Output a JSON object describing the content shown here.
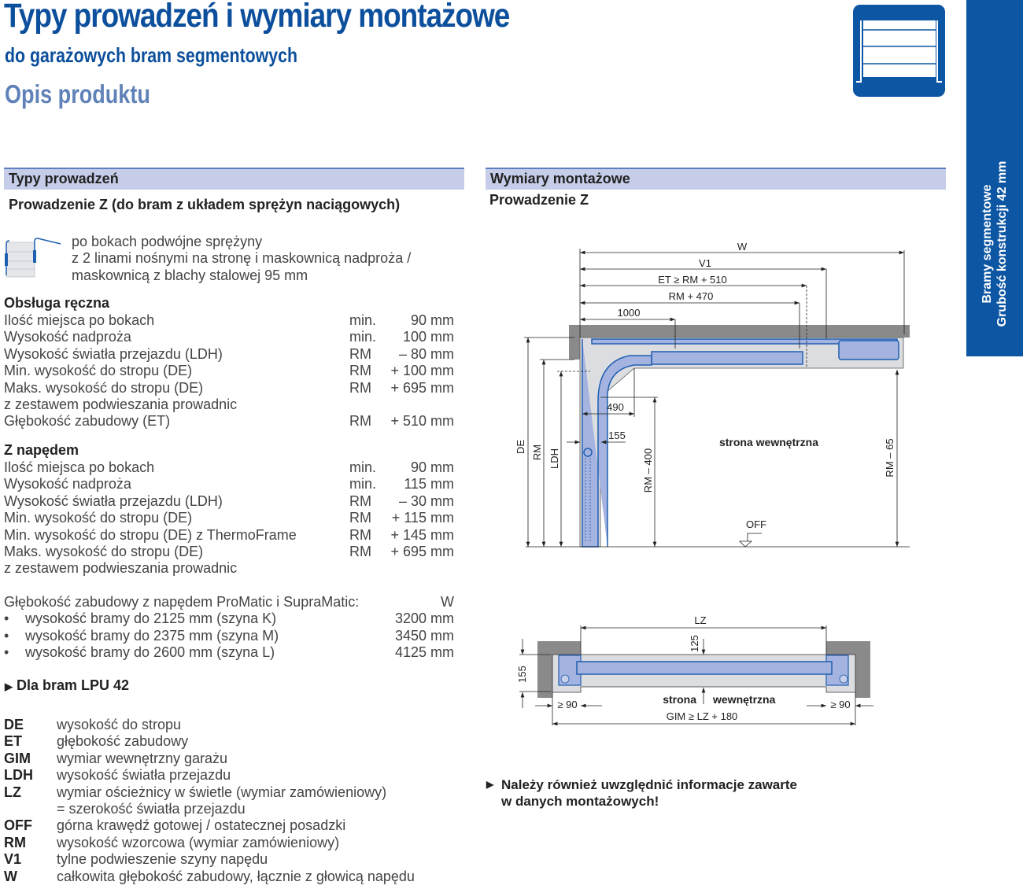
{
  "header": {
    "title": "Typy prowadzeń i wymiary montażowe",
    "subtitle": "do garażowych bram segmentowych",
    "section": "Opis produktu"
  },
  "side_tab": {
    "line1": "Bramy segmentowe",
    "line2": "Grubość konstrukcji 42 mm"
  },
  "colors": {
    "brand_blue": "#0c56a3",
    "section_bg": "#c6cde9",
    "diagram_blue": "#a4b3e0"
  },
  "left": {
    "section_title": "Typy prowadzeń",
    "guide_title": "Prowadzenie Z (do bram z układem sprężyn naciągowych)",
    "guide_desc": [
      "po bokach podwójne sprężyny",
      "z 2 linami nośnymi na stronę i maskownicą nadproża /",
      "maskownicą z blachy stalowej 95 mm"
    ],
    "manual": {
      "title": "Obsługa ręczna",
      "rows": [
        {
          "label": "Ilość miejsca po bokach",
          "ref": "min.",
          "value": "90 mm"
        },
        {
          "label": "Wysokość nadproża",
          "ref": "min.",
          "value": "100 mm"
        },
        {
          "label": "Wysokość światła przejazdu  (LDH)",
          "ref": "RM",
          "value": "– 80 mm"
        },
        {
          "label": "Min. wysokość do stropu (DE)",
          "ref": "RM",
          "value": "+ 100 mm"
        },
        {
          "label": "Maks. wysokość do stropu (DE)",
          "ref": "RM",
          "value": "+ 695 mm"
        },
        {
          "label": "z zestawem podwieszania prowadnic",
          "ref": "",
          "value": ""
        },
        {
          "label": "Głębokość zabudowy (ET)",
          "ref": "RM",
          "value": "+ 510 mm"
        }
      ]
    },
    "drive": {
      "title": "Z napędem",
      "rows": [
        {
          "label": "Ilość miejsca po bokach",
          "ref": "min.",
          "value": "90 mm"
        },
        {
          "label": "Wysokość nadproża",
          "ref": "min.",
          "value": "115 mm"
        },
        {
          "label": "Wysokość światła przejazdu  (LDH)",
          "ref": "RM",
          "value": "– 30 mm"
        },
        {
          "label": "Min. wysokość do stropu (DE)",
          "ref": "RM",
          "value": "+ 115 mm"
        },
        {
          "label": "Min. wysokość do stropu (DE) z ThermoFrame",
          "ref": "RM",
          "value": "+ 145 mm"
        },
        {
          "label": "Maks. wysokość do stropu (DE)",
          "ref": "RM",
          "value": "+ 695 mm"
        },
        {
          "label": "z zestawem podwieszania prowadnic",
          "ref": "",
          "value": ""
        }
      ]
    },
    "depth": {
      "label": "Głębokość zabudowy z napędem ProMatic i SupraMatic:",
      "unit": "W",
      "bullet": "•",
      "items": [
        {
          "label": "wysokość bramy do 2125 mm (szyna K)",
          "value": "3200 mm"
        },
        {
          "label": "wysokość bramy do 2375 mm (szyna M)",
          "value": "3450 mm"
        },
        {
          "label": "wysokość bramy do 2600 mm (szyna L)",
          "value": "4125 mm"
        }
      ]
    },
    "lpu_link": "Dla bram LPU 42",
    "legend": [
      {
        "abbr": "DE",
        "desc": "wysokość do stropu"
      },
      {
        "abbr": "ET",
        "desc": "głębokość zabudowy"
      },
      {
        "abbr": "GIM",
        "desc": "wymiar wewnętrzny garażu"
      },
      {
        "abbr": "LDH",
        "desc": "wysokość światła przejazdu"
      },
      {
        "abbr": "LZ",
        "desc": "wymiar ościeżnicy w świetle (wymiar zamówieniowy)"
      },
      {
        "abbr": "",
        "desc": "= szerokość światła przejazdu"
      },
      {
        "abbr": "OFF",
        "desc": "górna krawędź gotowej / ostatecznej posadzki"
      },
      {
        "abbr": "RM",
        "desc": "wysokość wzorcowa (wymiar zamówieniowy)"
      },
      {
        "abbr": "V1",
        "desc": "tylne podwieszenie szyny napędu"
      },
      {
        "abbr": "W",
        "desc": "całkowita głębokość zabudowy, łącznie z głowicą napędu"
      }
    ]
  },
  "right": {
    "section_title": "Wymiary montażowe",
    "guide_title": "Prowadzenie Z",
    "side_view": {
      "W": "W",
      "V1": "V1",
      "ET": "ET ≥ RM + 510",
      "RM470": "RM + 470",
      "d1000": "1000",
      "d490": "490",
      "d155": "155",
      "inside": "strona wewnętrzna",
      "DE": "DE",
      "RM": "RM",
      "LDH": "LDH",
      "RM400": "RM – 400",
      "RM65": "RM – 65",
      "OFF": "OFF"
    },
    "top_view": {
      "LZ": "LZ",
      "d125": "125",
      "d155": "155",
      "strona": "strona",
      "wewnetrzna": "wewnętrzna",
      "left90": "≥ 90",
      "right90": "≥ 90",
      "GIM": "GIM ≥ LZ + 180"
    },
    "note": [
      "Należy również uwzględnić informacje zawarte",
      "w danych montażowych!"
    ]
  }
}
